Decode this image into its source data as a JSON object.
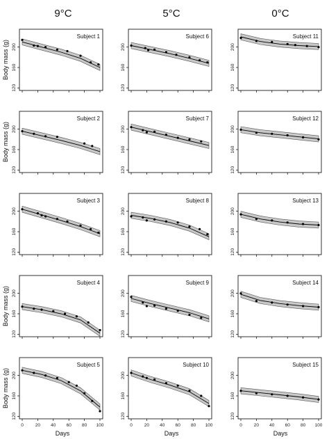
{
  "figure": {
    "column_headers": [
      "9°C",
      "5°C",
      "0°C"
    ],
    "ylabel": "Body mass (g)",
    "xlabel": "Days",
    "y_ticks": [
      120,
      160,
      200
    ],
    "x_ticks": [
      0,
      20,
      40,
      60,
      80,
      100
    ]
  },
  "chart_data": [
    {
      "type": "line",
      "title": "Subject 1",
      "column": "9°C",
      "xlim": [
        0,
        100
      ],
      "ylim": [
        115,
        235
      ],
      "points": {
        "x": [
          0,
          15,
          20,
          30,
          45,
          58,
          75,
          88,
          98
        ],
        "y": [
          214,
          203,
          202,
          200,
          195,
          192,
          183,
          170,
          166
        ]
      },
      "fit": {
        "x": [
          0,
          25,
          50,
          75,
          100
        ],
        "y": [
          210,
          200,
          190,
          178,
          160
        ]
      }
    },
    {
      "type": "line",
      "title": "Subject 6",
      "column": "5°C",
      "xlim": [
        0,
        100
      ],
      "ylim": [
        115,
        235
      ],
      "points": {
        "x": [
          0,
          18,
          22,
          30,
          45,
          58,
          75,
          88,
          98
        ],
        "y": [
          203,
          198,
          194,
          195,
          190,
          185,
          180,
          174,
          170
        ]
      },
      "fit": {
        "x": [
          0,
          25,
          50,
          75,
          100
        ],
        "y": [
          203,
          195,
          187,
          178,
          168
        ]
      }
    },
    {
      "type": "line",
      "title": "Subject 11",
      "column": "0°C",
      "xlim": [
        0,
        100
      ],
      "ylim": [
        115,
        235
      ],
      "points": {
        "x": [
          0,
          20,
          40,
          60,
          70,
          85,
          100
        ],
        "y": [
          218,
          212,
          210,
          206,
          204,
          202,
          200
        ]
      },
      "fit": {
        "x": [
          0,
          25,
          50,
          75,
          100
        ],
        "y": [
          220,
          211,
          206,
          203,
          201
        ]
      }
    },
    {
      "type": "line",
      "title": "Subject 2",
      "column": "9°C",
      "xlim": [
        0,
        100
      ],
      "ylim": [
        115,
        235
      ],
      "points": {
        "x": [
          0,
          15,
          30,
          45,
          80,
          90
        ],
        "y": [
          196,
          191,
          186,
          185,
          172,
          167
        ]
      },
      "fit": {
        "x": [
          0,
          25,
          50,
          75,
          100
        ],
        "y": [
          196,
          187,
          178,
          168,
          156
        ]
      }
    },
    {
      "type": "line",
      "title": "Subject 7",
      "column": "5°C",
      "xlim": [
        0,
        100
      ],
      "ylim": [
        115,
        235
      ],
      "points": {
        "x": [
          0,
          15,
          20,
          30,
          45,
          60,
          75,
          90
        ],
        "y": [
          204,
          198,
          194,
          195,
          189,
          183,
          180,
          176
        ]
      },
      "fit": {
        "x": [
          0,
          25,
          50,
          75,
          100
        ],
        "y": [
          204,
          195,
          186,
          177,
          168
        ]
      }
    },
    {
      "type": "line",
      "title": "Subject 12",
      "column": "0°C",
      "xlim": [
        0,
        100
      ],
      "ylim": [
        115,
        235
      ],
      "points": {
        "x": [
          0,
          20,
          40,
          60,
          80,
          100
        ],
        "y": [
          199,
          193,
          191,
          188,
          184,
          180
        ]
      },
      "fit": {
        "x": [
          0,
          25,
          50,
          75,
          100
        ],
        "y": [
          199,
          193,
          189,
          185,
          181
        ]
      }
    },
    {
      "type": "line",
      "title": "Subject 3",
      "column": "9°C",
      "xlim": [
        0,
        100
      ],
      "ylim": [
        115,
        235
      ],
      "points": {
        "x": [
          0,
          20,
          25,
          30,
          45,
          58,
          75,
          88,
          98
        ],
        "y": [
          204,
          196,
          192,
          190,
          185,
          180,
          172,
          165,
          158
        ]
      },
      "fit": {
        "x": [
          0,
          25,
          50,
          75,
          100
        ],
        "y": [
          204,
          193,
          182,
          170,
          156
        ]
      }
    },
    {
      "type": "line",
      "title": "Subject 8",
      "column": "5°C",
      "xlim": [
        0,
        100
      ],
      "ylim": [
        115,
        235
      ],
      "points": {
        "x": [
          0,
          15,
          20,
          30,
          45,
          60,
          75,
          88,
          98
        ],
        "y": [
          190,
          188,
          182,
          184,
          180,
          178,
          170,
          165,
          155
        ]
      },
      "fit": {
        "x": [
          0,
          25,
          50,
          75,
          100
        ],
        "y": [
          192,
          186,
          178,
          167,
          150
        ]
      }
    },
    {
      "type": "line",
      "title": "Subject 13",
      "column": "0°C",
      "xlim": [
        0,
        100
      ],
      "ylim": [
        115,
        235
      ],
      "points": {
        "x": [
          0,
          20,
          40,
          60,
          80,
          100
        ],
        "y": [
          194,
          185,
          182,
          178,
          175,
          173
        ]
      },
      "fit": {
        "x": [
          0,
          25,
          50,
          75,
          100
        ],
        "y": [
          194,
          185,
          179,
          175,
          173
        ]
      }
    },
    {
      "type": "line",
      "title": "Subject 4",
      "column": "9°C",
      "xlim": [
        0,
        100
      ],
      "ylim": [
        115,
        235
      ],
      "points": {
        "x": [
          0,
          15,
          25,
          40,
          55,
          70,
          85,
          100
        ],
        "y": [
          174,
          170,
          168,
          165,
          160,
          155,
          143,
          128
        ]
      },
      "fit": {
        "x": [
          0,
          25,
          50,
          75,
          100
        ],
        "y": [
          174,
          168,
          160,
          148,
          122
        ]
      }
    },
    {
      "type": "line",
      "title": "Subject 9",
      "column": "5°C",
      "xlim": [
        0,
        100
      ],
      "ylim": [
        115,
        235
      ],
      "points": {
        "x": [
          0,
          15,
          20,
          30,
          45,
          60,
          75,
          90
        ],
        "y": [
          193,
          182,
          175,
          176,
          170,
          166,
          158,
          152
        ]
      },
      "fit": {
        "x": [
          0,
          25,
          50,
          75,
          100
        ],
        "y": [
          190,
          180,
          171,
          162,
          150
        ]
      }
    },
    {
      "type": "line",
      "title": "Subject 14",
      "column": "0°C",
      "xlim": [
        0,
        100
      ],
      "ylim": [
        115,
        235
      ],
      "points": {
        "x": [
          0,
          20,
          40,
          60,
          80,
          100
        ],
        "y": [
          200,
          185,
          182,
          178,
          175,
          173
        ]
      },
      "fit": {
        "x": [
          0,
          25,
          50,
          75,
          100
        ],
        "y": [
          198,
          186,
          180,
          176,
          173
        ]
      }
    },
    {
      "type": "line",
      "title": "Subject 5",
      "column": "9°C",
      "xlim": [
        0,
        100
      ],
      "ylim": [
        115,
        235
      ],
      "points": {
        "x": [
          0,
          15,
          30,
          45,
          60,
          70,
          80,
          90,
          100
        ],
        "y": [
          210,
          205,
          200,
          195,
          187,
          180,
          165,
          150,
          130
        ]
      },
      "fit": {
        "x": [
          0,
          25,
          50,
          75,
          100
        ],
        "y": [
          210,
          202,
          190,
          170,
          138
        ]
      }
    },
    {
      "type": "line",
      "title": "Subject 10",
      "column": "5°C",
      "xlim": [
        0,
        100
      ],
      "ylim": [
        115,
        235
      ],
      "points": {
        "x": [
          0,
          15,
          20,
          30,
          45,
          60,
          75,
          90,
          100
        ],
        "y": [
          205,
          198,
          195,
          192,
          185,
          180,
          170,
          160,
          140
        ]
      },
      "fit": {
        "x": [
          0,
          25,
          50,
          75,
          100
        ],
        "y": [
          205,
          192,
          181,
          168,
          145
        ]
      }
    },
    {
      "type": "line",
      "title": "Subject 15",
      "column": "0°C",
      "xlim": [
        0,
        100
      ],
      "ylim": [
        115,
        235
      ],
      "points": {
        "x": [
          0,
          20,
          40,
          60,
          80,
          100
        ],
        "y": [
          170,
          165,
          163,
          160,
          157,
          153
        ]
      },
      "fit": {
        "x": [
          0,
          25,
          50,
          75,
          100
        ],
        "y": [
          170,
          166,
          162,
          158,
          153
        ]
      }
    }
  ]
}
